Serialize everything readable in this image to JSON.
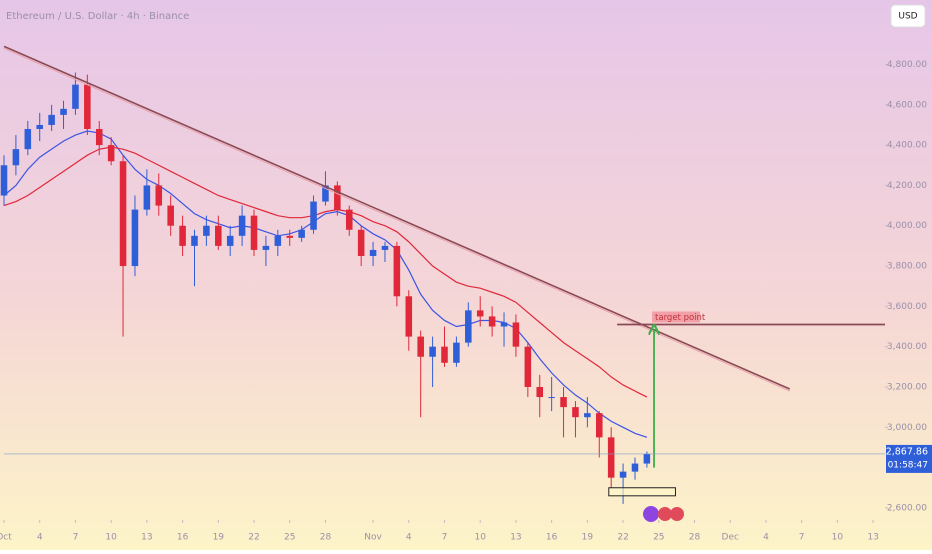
{
  "chart_data": {
    "type": "candlestick",
    "title": "Ethereum / U.S. Dollar · 4h · Binance",
    "currency_button": "USD",
    "xlim": [
      0,
      74
    ],
    "ylim": [
      2540,
      5120
    ],
    "xticks": [
      {
        "value": 0,
        "label": "Oct"
      },
      {
        "value": 3,
        "label": "4"
      },
      {
        "value": 6,
        "label": "7"
      },
      {
        "value": 9,
        "label": "10"
      },
      {
        "value": 12,
        "label": "13"
      },
      {
        "value": 15,
        "label": "16"
      },
      {
        "value": 18,
        "label": "19"
      },
      {
        "value": 21,
        "label": "22"
      },
      {
        "value": 24,
        "label": "25"
      },
      {
        "value": 27,
        "label": "28"
      },
      {
        "value": 31,
        "label": "Nov"
      },
      {
        "value": 34,
        "label": "4"
      },
      {
        "value": 37,
        "label": "7"
      },
      {
        "value": 40,
        "label": "10"
      },
      {
        "value": 43,
        "label": "13"
      },
      {
        "value": 46,
        "label": "16"
      },
      {
        "value": 49,
        "label": "19"
      },
      {
        "value": 52,
        "label": "22"
      },
      {
        "value": 55,
        "label": "25"
      },
      {
        "value": 58,
        "label": "28"
      },
      {
        "value": 61,
        "label": "Dec"
      },
      {
        "value": 64,
        "label": "4"
      },
      {
        "value": 67,
        "label": "7"
      },
      {
        "value": 70,
        "label": "10"
      },
      {
        "value": 73,
        "label": "13"
      }
    ],
    "yticks": [
      {
        "value": 4800,
        "label": "4,800.00"
      },
      {
        "value": 4600,
        "label": "4,600.00"
      },
      {
        "value": 4400,
        "label": "4,400.00"
      },
      {
        "value": 4200,
        "label": "4,200.00"
      },
      {
        "value": 4000,
        "label": "4,000.00"
      },
      {
        "value": 3800,
        "label": "3,800.00"
      },
      {
        "value": 3600,
        "label": "3,600.00"
      },
      {
        "value": 3400,
        "label": "3,400.00"
      },
      {
        "value": 3200,
        "label": "3,200.00"
      },
      {
        "value": 3000,
        "label": "3,000.00"
      },
      {
        "value": 2600,
        "label": "2,600.00"
      }
    ],
    "up_color": "#2f5fd8",
    "down_color": "#e0283a",
    "x": [
      0,
      1,
      2,
      3,
      4,
      5,
      6,
      7,
      8,
      9,
      10,
      11,
      12,
      13,
      14,
      15,
      16,
      17,
      18,
      19,
      20,
      21,
      22,
      23,
      24,
      25,
      26,
      27,
      28,
      29,
      30,
      31,
      32,
      33,
      34,
      35,
      36,
      37,
      38,
      39,
      40,
      41,
      42,
      43,
      44,
      45,
      46,
      47,
      48,
      49,
      50,
      51,
      52,
      53,
      54
    ],
    "open": [
      4150,
      4300,
      4380,
      4480,
      4500,
      4550,
      4580,
      4700,
      4480,
      4400,
      4320,
      3800,
      4080,
      4200,
      4100,
      4000,
      3900,
      3950,
      4000,
      3900,
      3950,
      4050,
      3880,
      3900,
      3950,
      3940,
      3980,
      4120,
      4200,
      4080,
      3980,
      3850,
      3880,
      3900,
      3650,
      3450,
      3350,
      3400,
      3320,
      3420,
      3580,
      3550,
      3500,
      3520,
      3400,
      3200,
      3150,
      3150,
      3100,
      3050,
      3070,
      2950,
      2750,
      2780,
      2820
    ],
    "high": [
      4350,
      4450,
      4520,
      4560,
      4600,
      4620,
      4760,
      4750,
      4520,
      4440,
      4350,
      4150,
      4280,
      4260,
      4150,
      4050,
      3980,
      4050,
      4050,
      4000,
      4100,
      4080,
      3950,
      3980,
      3980,
      4000,
      4150,
      4270,
      4220,
      4100,
      4000,
      3920,
      3920,
      3920,
      3680,
      3480,
      3450,
      3500,
      3450,
      3620,
      3650,
      3600,
      3570,
      3560,
      3420,
      3260,
      3250,
      3200,
      3130,
      3150,
      3080,
      3000,
      2820,
      2850,
      2880
    ],
    "low": [
      4100,
      4250,
      4350,
      4420,
      4470,
      4480,
      4550,
      4450,
      4350,
      4300,
      3450,
      3750,
      4050,
      4050,
      3950,
      3850,
      3700,
      3900,
      3880,
      3850,
      3900,
      3850,
      3800,
      3850,
      3900,
      3920,
      3960,
      4100,
      4050,
      3950,
      3800,
      3800,
      3820,
      3600,
      3380,
      3050,
      3200,
      3300,
      3300,
      3400,
      3500,
      3450,
      3400,
      3350,
      3150,
      3050,
      3080,
      2950,
      2950,
      3000,
      2850,
      2700,
      2620,
      2740,
      2800
    ],
    "close": [
      4300,
      4380,
      4480,
      4500,
      4550,
      4580,
      4700,
      4480,
      4400,
      4320,
      3800,
      4080,
      4200,
      4100,
      4000,
      3900,
      3950,
      4000,
      3900,
      3950,
      4050,
      3880,
      3900,
      3950,
      3940,
      3980,
      4120,
      4200,
      4080,
      3980,
      3850,
      3880,
      3900,
      3650,
      3450,
      3350,
      3400,
      3320,
      3420,
      3580,
      3550,
      3500,
      3520,
      3400,
      3200,
      3150,
      3150,
      3100,
      3050,
      3070,
      2950,
      2750,
      2780,
      2820,
      2868
    ],
    "moving_averages": [
      {
        "color": "#3b55e6",
        "values": [
          4150,
          4200,
          4280,
          4340,
          4380,
          4420,
          4450,
          4470,
          4460,
          4430,
          4350,
          4280,
          4230,
          4200,
          4160,
          4110,
          4060,
          4030,
          4010,
          3990,
          4000,
          3990,
          3970,
          3950,
          3960,
          3980,
          4020,
          4060,
          4070,
          4050,
          4000,
          3960,
          3930,
          3880,
          3780,
          3660,
          3580,
          3530,
          3500,
          3510,
          3530,
          3530,
          3520,
          3490,
          3420,
          3340,
          3270,
          3210,
          3160,
          3120,
          3070,
          3030,
          3000,
          2970,
          2950
        ]
      },
      {
        "color": "#e0283a",
        "values": [
          4100,
          4120,
          4150,
          4190,
          4230,
          4270,
          4310,
          4350,
          4380,
          4390,
          4380,
          4360,
          4330,
          4300,
          4270,
          4240,
          4210,
          4180,
          4150,
          4130,
          4110,
          4090,
          4070,
          4050,
          4040,
          4040,
          4050,
          4070,
          4080,
          4070,
          4050,
          4020,
          4000,
          3970,
          3920,
          3860,
          3800,
          3760,
          3720,
          3700,
          3690,
          3670,
          3650,
          3620,
          3570,
          3520,
          3470,
          3420,
          3380,
          3340,
          3300,
          3250,
          3210,
          3180,
          3150
        ]
      }
    ],
    "trendline": {
      "color": "#8a4a55",
      "x": [
        0,
        66
      ],
      "y": [
        4890,
        3190
      ]
    },
    "target": {
      "label": "target point",
      "color": "#8a4a55",
      "x": [
        51.5,
        74
      ],
      "y": 3510
    },
    "arrow": {
      "color": "#3cae4a",
      "x": 54.6,
      "y": [
        2800,
        3500
      ]
    },
    "box": {
      "x": [
        50.8,
        56.4
      ],
      "y": [
        2660,
        2700
      ]
    },
    "last_price": {
      "value": 2867.86,
      "label": "2,867.86",
      "countdown": "01:58:47"
    }
  }
}
